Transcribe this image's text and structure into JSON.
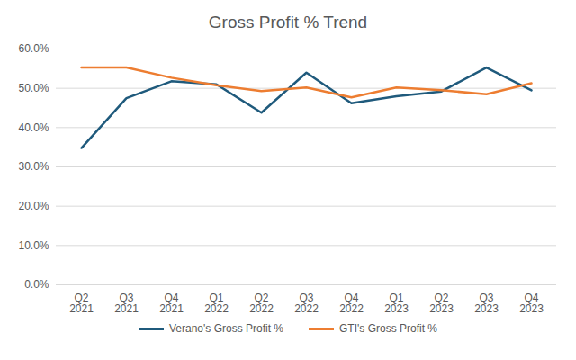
{
  "chart_data": {
    "type": "line",
    "title": "Gross Profit % Trend",
    "categories": [
      "Q2\n2021",
      "Q3\n2021",
      "Q4\n2021",
      "Q1\n2022",
      "Q2\n2022",
      "Q3\n2022",
      "Q4\n2022",
      "Q1\n2023",
      "Q2\n2023",
      "Q3\n2023",
      "Q4\n2023"
    ],
    "series": [
      {
        "name": "Verano's Gross Profit %",
        "color": "#1f5a7c",
        "values": [
          34.8,
          47.5,
          51.8,
          51.0,
          43.8,
          54.0,
          46.2,
          48.0,
          49.2,
          55.3,
          49.5
        ]
      },
      {
        "name": "GTI's Gross Profit %",
        "color": "#ed7d31",
        "values": [
          55.3,
          55.3,
          52.7,
          50.8,
          49.3,
          50.2,
          47.7,
          50.2,
          49.5,
          48.5,
          51.3
        ]
      }
    ],
    "ylim": [
      0,
      60
    ],
    "yticks": [
      {
        "value": 0,
        "label": "0.0%"
      },
      {
        "value": 10,
        "label": "10.0%"
      },
      {
        "value": 20,
        "label": "20.0%"
      },
      {
        "value": 30,
        "label": "30.0%"
      },
      {
        "value": 40,
        "label": "40.0%"
      },
      {
        "value": 50,
        "label": "50.0%"
      },
      {
        "value": 60,
        "label": "60.0%"
      }
    ],
    "grid": true,
    "legend": "bottom"
  }
}
